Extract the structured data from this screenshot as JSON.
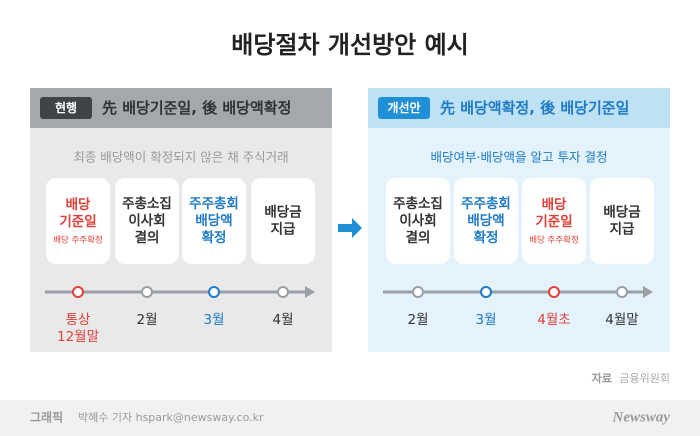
{
  "title": "배당절차 개선방안 예시",
  "panels": [
    {
      "badge": "현행",
      "heading": "先 배당기준일, 後 배당액확정",
      "subtitle": "최종 배당액이 확정되지 않은 채 주식거래",
      "steps": [
        {
          "lines": [
            "배당",
            "기준일"
          ],
          "note": "배당 주주확정",
          "color": "#e0403a",
          "time": [
            "통상",
            "12월말"
          ]
        },
        {
          "lines": [
            "주총소집",
            "이사회",
            "결의"
          ],
          "color": "#333333",
          "time": [
            "2월"
          ]
        },
        {
          "lines": [
            "주주총회",
            "배당액",
            "확정"
          ],
          "color": "#1f7bc4",
          "time": [
            "3월"
          ]
        },
        {
          "lines": [
            "배당금",
            "지급"
          ],
          "color": "#333333",
          "time": [
            "4월"
          ]
        }
      ]
    },
    {
      "badge": "개선안",
      "heading": "先 배당액확정, 後 배당기준일",
      "subtitle": "배당여부·배당액을 알고 투자 결정",
      "steps": [
        {
          "lines": [
            "주총소집",
            "이사회",
            "결의"
          ],
          "color": "#333333",
          "time": [
            "2월"
          ]
        },
        {
          "lines": [
            "주주총회",
            "배당액",
            "확정"
          ],
          "color": "#1f7bc4",
          "time": [
            "3월"
          ]
        },
        {
          "lines": [
            "배당",
            "기준일"
          ],
          "note": "배당 주주확정",
          "color": "#e0403a",
          "time": [
            "4월초"
          ]
        },
        {
          "lines": [
            "배당금",
            "지급"
          ],
          "color": "#333333",
          "time": [
            "4월말"
          ]
        }
      ]
    }
  ],
  "source": {
    "label": "자료",
    "text": "금융위원회"
  },
  "footer": {
    "label": "그래픽",
    "credit": "박혜수 기자 hspark@newsway.co.kr",
    "logo": "Newsway"
  }
}
